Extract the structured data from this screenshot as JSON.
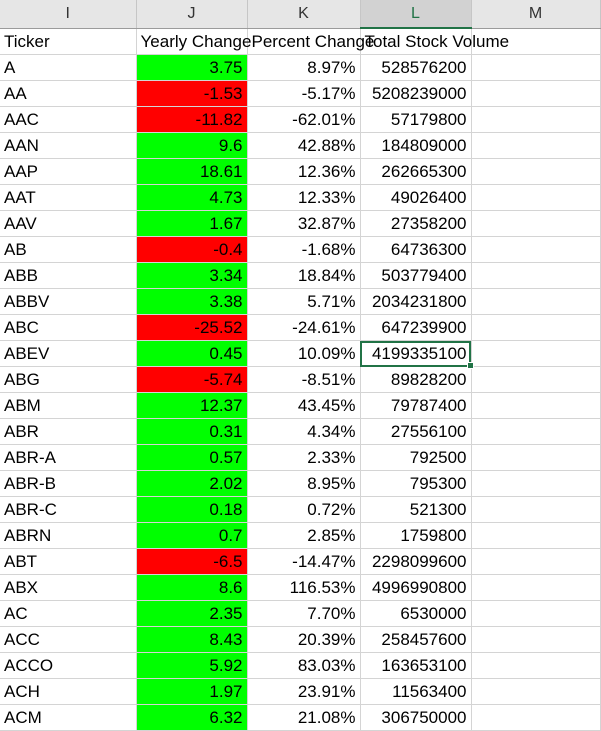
{
  "columns": [
    {
      "letter": "I",
      "selected": false
    },
    {
      "letter": "J",
      "selected": false
    },
    {
      "letter": "K",
      "selected": false
    },
    {
      "letter": "L",
      "selected": true
    },
    {
      "letter": "M",
      "selected": false
    }
  ],
  "headers": {
    "ticker": "Ticker",
    "yearly_change": "Yearly Change",
    "percent_change": "Percent Change",
    "total_volume": "Total Stock Volume"
  },
  "rows": [
    {
      "ticker": "A",
      "yearly_change": "3.75",
      "percent_change": "8.97%",
      "total_volume": "528576200",
      "trend": "pos"
    },
    {
      "ticker": "AA",
      "yearly_change": "-1.53",
      "percent_change": "-5.17%",
      "total_volume": "5208239000",
      "trend": "neg"
    },
    {
      "ticker": "AAC",
      "yearly_change": "-11.82",
      "percent_change": "-62.01%",
      "total_volume": "57179800",
      "trend": "neg"
    },
    {
      "ticker": "AAN",
      "yearly_change": "9.6",
      "percent_change": "42.88%",
      "total_volume": "184809000",
      "trend": "pos"
    },
    {
      "ticker": "AAP",
      "yearly_change": "18.61",
      "percent_change": "12.36%",
      "total_volume": "262665300",
      "trend": "pos"
    },
    {
      "ticker": "AAT",
      "yearly_change": "4.73",
      "percent_change": "12.33%",
      "total_volume": "49026400",
      "trend": "pos"
    },
    {
      "ticker": "AAV",
      "yearly_change": "1.67",
      "percent_change": "32.87%",
      "total_volume": "27358200",
      "trend": "pos"
    },
    {
      "ticker": "AB",
      "yearly_change": "-0.4",
      "percent_change": "-1.68%",
      "total_volume": "64736300",
      "trend": "neg"
    },
    {
      "ticker": "ABB",
      "yearly_change": "3.34",
      "percent_change": "18.84%",
      "total_volume": "503779400",
      "trend": "pos"
    },
    {
      "ticker": "ABBV",
      "yearly_change": "3.38",
      "percent_change": "5.71%",
      "total_volume": "2034231800",
      "trend": "pos"
    },
    {
      "ticker": "ABC",
      "yearly_change": "-25.52",
      "percent_change": "-24.61%",
      "total_volume": "647239900",
      "trend": "neg"
    },
    {
      "ticker": "ABEV",
      "yearly_change": "0.45",
      "percent_change": "10.09%",
      "total_volume": "4199335100",
      "trend": "pos"
    },
    {
      "ticker": "ABG",
      "yearly_change": "-5.74",
      "percent_change": "-8.51%",
      "total_volume": "89828200",
      "trend": "neg"
    },
    {
      "ticker": "ABM",
      "yearly_change": "12.37",
      "percent_change": "43.45%",
      "total_volume": "79787400",
      "trend": "pos"
    },
    {
      "ticker": "ABR",
      "yearly_change": "0.31",
      "percent_change": "4.34%",
      "total_volume": "27556100",
      "trend": "pos"
    },
    {
      "ticker": "ABR-A",
      "yearly_change": "0.57",
      "percent_change": "2.33%",
      "total_volume": "792500",
      "trend": "pos"
    },
    {
      "ticker": "ABR-B",
      "yearly_change": "2.02",
      "percent_change": "8.95%",
      "total_volume": "795300",
      "trend": "pos"
    },
    {
      "ticker": "ABR-C",
      "yearly_change": "0.18",
      "percent_change": "0.72%",
      "total_volume": "521300",
      "trend": "pos"
    },
    {
      "ticker": "ABRN",
      "yearly_change": "0.7",
      "percent_change": "2.85%",
      "total_volume": "1759800",
      "trend": "pos"
    },
    {
      "ticker": "ABT",
      "yearly_change": "-6.5",
      "percent_change": "-14.47%",
      "total_volume": "2298099600",
      "trend": "neg"
    },
    {
      "ticker": "ABX",
      "yearly_change": "8.6",
      "percent_change": "116.53%",
      "total_volume": "4996990800",
      "trend": "pos"
    },
    {
      "ticker": "AC",
      "yearly_change": "2.35",
      "percent_change": "7.70%",
      "total_volume": "6530000",
      "trend": "pos"
    },
    {
      "ticker": "ACC",
      "yearly_change": "8.43",
      "percent_change": "20.39%",
      "total_volume": "258457600",
      "trend": "pos"
    },
    {
      "ticker": "ACCO",
      "yearly_change": "5.92",
      "percent_change": "83.03%",
      "total_volume": "163653100",
      "trend": "pos"
    },
    {
      "ticker": "ACH",
      "yearly_change": "1.97",
      "percent_change": "23.91%",
      "total_volume": "11563400",
      "trend": "pos"
    },
    {
      "ticker": "ACM",
      "yearly_change": "6.32",
      "percent_change": "21.08%",
      "total_volume": "306750000",
      "trend": "pos"
    }
  ],
  "active_cell": {
    "row": 11,
    "column": "L"
  },
  "colors": {
    "positive_fill": "#00ff00",
    "negative_fill": "#ff0000",
    "selection_accent": "#217346"
  }
}
